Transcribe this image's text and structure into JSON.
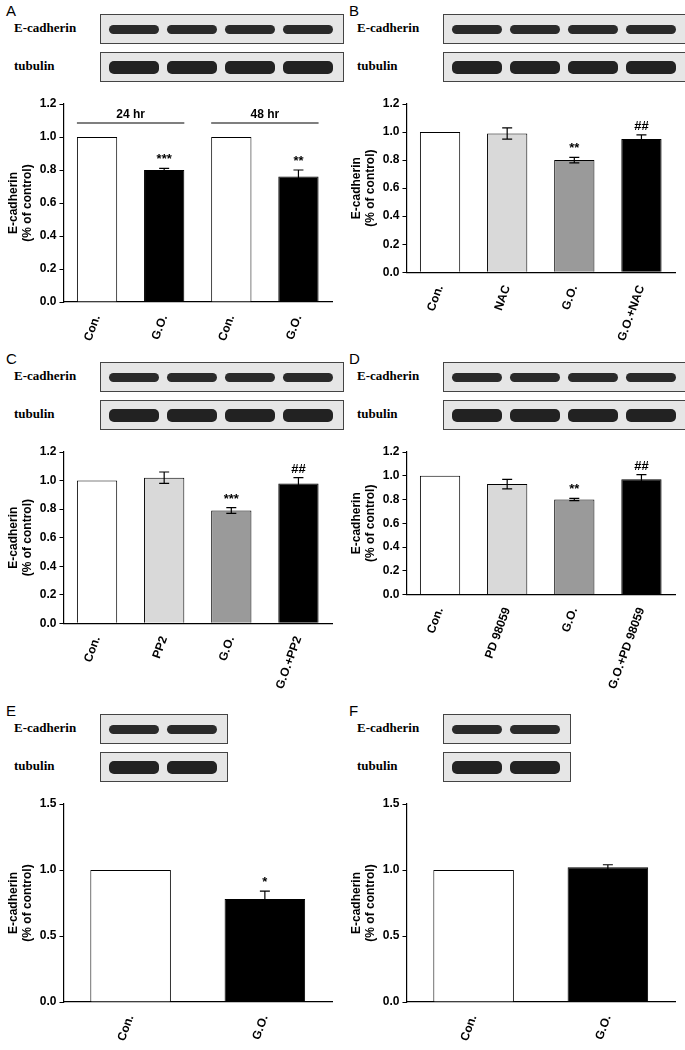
{
  "chart_data": [
    {
      "type": "bar",
      "title": "A",
      "blot_labels": [
        "E-cadherin",
        "tubulin"
      ],
      "categories": [
        "Con.",
        "G.O.",
        "Con.",
        "G.O."
      ],
      "values": [
        1.0,
        0.8,
        1.0,
        0.76
      ],
      "errors": [
        0,
        0.01,
        0,
        0.04
      ],
      "colors": [
        "#ffffff",
        "#000000",
        "#ffffff",
        "#000000"
      ],
      "significance": [
        null,
        "***",
        null,
        "**"
      ],
      "group_labels": [
        "24 hr",
        "48 hr"
      ],
      "ylabel": [
        "E-cadherin",
        "(% of control)"
      ],
      "ylim": [
        0,
        1.2
      ],
      "yticks": [
        {
          "value": 0,
          "label": "0.0"
        },
        0.2,
        0.4,
        0.6,
        0.8,
        {
          "value": 1,
          "label": "1.0"
        },
        1.2
      ],
      "grid": false
    },
    {
      "type": "bar",
      "title": "B",
      "blot_labels": [
        "E-cadherin",
        "tubulin"
      ],
      "categories": [
        "Con.",
        "NAC",
        "G.O.",
        "G.O.+NAC"
      ],
      "values": [
        1.0,
        0.99,
        0.8,
        0.95
      ],
      "errors": [
        0,
        0.04,
        0.02,
        0.03
      ],
      "colors": [
        "#ffffff",
        "#d9d9d9",
        "#9a9a9a",
        "#000000"
      ],
      "significance": [
        null,
        null,
        "**",
        "##"
      ],
      "ylabel": [
        "E-cadherin",
        "(% of control)"
      ],
      "ylim": [
        0,
        1.2
      ],
      "yticks": [
        {
          "value": 0,
          "label": "0.0"
        },
        0.2,
        0.4,
        0.6,
        0.8,
        {
          "value": 1,
          "label": "1.0"
        },
        1.2
      ],
      "grid": false
    },
    {
      "type": "bar",
      "title": "C",
      "blot_labels": [
        "E-cadherin",
        "tubulin"
      ],
      "categories": [
        "Con.",
        "PP2",
        "G.O.",
        "G.O.+PP2"
      ],
      "values": [
        1.0,
        1.02,
        0.79,
        0.98
      ],
      "errors": [
        0,
        0.04,
        0.02,
        0.04
      ],
      "colors": [
        "#ffffff",
        "#d9d9d9",
        "#9a9a9a",
        "#000000"
      ],
      "significance": [
        null,
        null,
        "***",
        "##"
      ],
      "ylabel": [
        "E-cadherin",
        "(% of control)"
      ],
      "ylim": [
        0,
        1.2
      ],
      "yticks": [
        {
          "value": 0,
          "label": "0.0"
        },
        0.2,
        0.4,
        0.6,
        0.8,
        {
          "value": 1,
          "label": "1.0"
        },
        1.2
      ],
      "grid": false
    },
    {
      "type": "bar",
      "title": "D",
      "blot_labels": [
        "E-cadherin",
        "tubulin"
      ],
      "categories": [
        "Con.",
        "PD 98059",
        "G.O.",
        "G.O.+PD 98059"
      ],
      "values": [
        1.0,
        0.93,
        0.8,
        0.97
      ],
      "errors": [
        0,
        0.04,
        0.01,
        0.04
      ],
      "colors": [
        "#ffffff",
        "#d9d9d9",
        "#9a9a9a",
        "#000000"
      ],
      "significance": [
        null,
        null,
        "**",
        "##"
      ],
      "ylabel": [
        "E-cadherin",
        "(% of control)"
      ],
      "ylim": [
        0,
        1.2
      ],
      "yticks": [
        {
          "value": 0,
          "label": "0.0"
        },
        0.2,
        0.4,
        0.6,
        0.8,
        {
          "value": 1,
          "label": "1.0"
        },
        1.2
      ],
      "grid": false
    },
    {
      "type": "bar",
      "title": "E",
      "blot_labels": [
        "E-cadherin",
        "tubulin"
      ],
      "categories": [
        "Con.",
        "G.O."
      ],
      "values": [
        1.0,
        0.78
      ],
      "errors": [
        0,
        0.06
      ],
      "colors": [
        "#ffffff",
        "#000000"
      ],
      "significance": [
        null,
        "*"
      ],
      "ylabel": [
        "E-cadherin",
        "(% of control)"
      ],
      "ylim": [
        0,
        1.5
      ],
      "yticks": [
        {
          "value": 0,
          "label": "0.0"
        },
        0.5,
        {
          "value": 1,
          "label": "1.0"
        },
        1.5
      ],
      "grid": false
    },
    {
      "type": "bar",
      "title": "F",
      "blot_labels": [
        "E-cadherin",
        "tubulin"
      ],
      "categories": [
        "Con.",
        "G.O."
      ],
      "values": [
        1.0,
        1.02
      ],
      "errors": [
        0,
        0.02
      ],
      "colors": [
        "#ffffff",
        "#000000"
      ],
      "ylabel": [
        "E-cadherin",
        "(% of control)"
      ],
      "ylim": [
        0,
        1.5
      ],
      "yticks": [
        {
          "value": 0,
          "label": "0.0"
        },
        0.5,
        {
          "value": 1,
          "label": "1.0"
        },
        1.5
      ],
      "grid": false
    }
  ]
}
